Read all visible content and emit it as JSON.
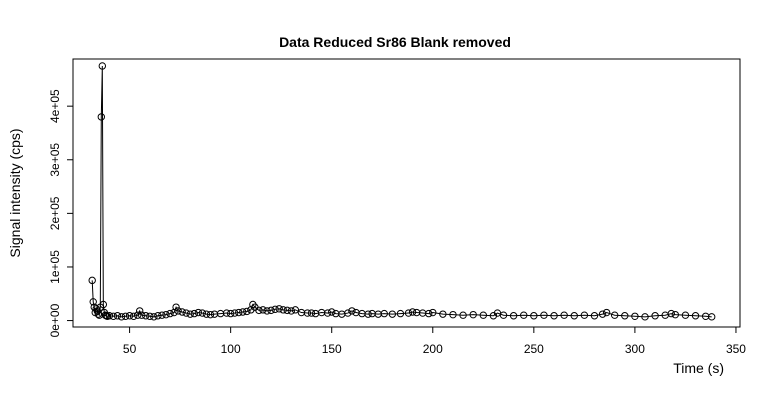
{
  "chart_data": {
    "type": "scatter",
    "title": "Data Reduced Sr86 Blank removed",
    "xlabel": "Time (s)",
    "ylabel": "Signal intensity (cps)",
    "xlim": [
      22,
      352
    ],
    "ylim": [
      -12000,
      488000
    ],
    "x_ticks": [
      {
        "value": 50,
        "label": "50"
      },
      {
        "value": 100,
        "label": "100"
      },
      {
        "value": 150,
        "label": "150"
      },
      {
        "value": 200,
        "label": "200"
      },
      {
        "value": 250,
        "label": "250"
      },
      {
        "value": 300,
        "label": "300"
      },
      {
        "value": 350,
        "label": "350"
      }
    ],
    "y_ticks": [
      {
        "value": 0,
        "label": "0e+00"
      },
      {
        "value": 100000,
        "label": "1e+05"
      },
      {
        "value": 200000,
        "label": "2e+05"
      },
      {
        "value": 300000,
        "label": "3e+05"
      },
      {
        "value": 400000,
        "label": "4e+05"
      }
    ],
    "marker": "open-circle",
    "connect_points": true,
    "grid": false,
    "box": true,
    "series": [
      {
        "x": [
          31.5,
          32.0,
          32.5,
          33.0,
          33.5,
          34.0,
          34.5,
          35.0,
          35.5,
          36.0,
          36.5,
          37.0,
          37.5,
          38.0,
          38.5,
          39.0,
          40.0,
          42.0,
          44.0,
          46.0,
          48.0,
          50.0,
          52.0,
          54.0,
          55.0,
          56.0,
          58.0,
          60.0,
          62.0,
          64.0,
          66.0,
          68.0,
          70.0,
          72.0,
          73.0,
          74.0,
          76.0,
          78.0,
          80.0,
          82.0,
          84.0,
          86.0,
          88.0,
          90.0,
          92.0,
          95.0,
          98.0,
          100.0,
          102.0,
          104.0,
          106.0,
          108.0,
          110.0,
          111.0,
          112.0,
          114.0,
          116.0,
          118.0,
          120.0,
          122.0,
          124.0,
          126.0,
          128.0,
          130.0,
          132.0,
          135.0,
          138.0,
          140.0,
          142.0,
          145.0,
          148.0,
          150.0,
          152.0,
          155.0,
          158.0,
          160.0,
          162.0,
          165.0,
          168.0,
          170.0,
          173.0,
          176.0,
          180.0,
          184.0,
          188.0,
          190.0,
          192.0,
          195.0,
          198.0,
          200.0,
          205.0,
          210.0,
          215.0,
          220.0,
          225.0,
          230.0,
          232.0,
          235.0,
          240.0,
          245.0,
          250.0,
          255.0,
          260.0,
          265.0,
          270.0,
          275.0,
          280.0,
          284.0,
          286.0,
          290.0,
          295.0,
          300.0,
          305.0,
          310.0,
          315.0,
          318.0,
          320.0,
          325.0,
          330.0,
          335.0,
          338.0
        ],
        "y": [
          75000,
          35000,
          25000,
          15000,
          22000,
          18000,
          12000,
          10000,
          25000,
          380000,
          475000,
          30000,
          15000,
          10000,
          9000,
          8000,
          9000,
          8000,
          9000,
          7000,
          8000,
          9000,
          8000,
          10000,
          18000,
          10000,
          9000,
          8000,
          7000,
          9000,
          10000,
          11000,
          13000,
          15000,
          25000,
          18000,
          16000,
          14000,
          12000,
          13000,
          15000,
          14000,
          12000,
          11000,
          12000,
          13000,
          14000,
          13000,
          14000,
          15000,
          16000,
          17000,
          20000,
          30000,
          25000,
          19000,
          20000,
          18000,
          19000,
          21000,
          22000,
          20000,
          19000,
          18000,
          20000,
          15000,
          14000,
          14000,
          13000,
          15000,
          14000,
          16000,
          13000,
          12000,
          14000,
          18000,
          15000,
          13000,
          12000,
          13000,
          12000,
          13000,
          12000,
          13000,
          14000,
          16000,
          15000,
          14000,
          13000,
          15000,
          12000,
          11000,
          10000,
          11000,
          10000,
          9000,
          14000,
          10000,
          9000,
          10000,
          9000,
          10000,
          9000,
          10000,
          9000,
          10000,
          9000,
          12000,
          15000,
          10000,
          9000,
          8000,
          7000,
          9000,
          10000,
          13000,
          11000,
          10000,
          9000,
          8000,
          7000
        ]
      }
    ]
  }
}
